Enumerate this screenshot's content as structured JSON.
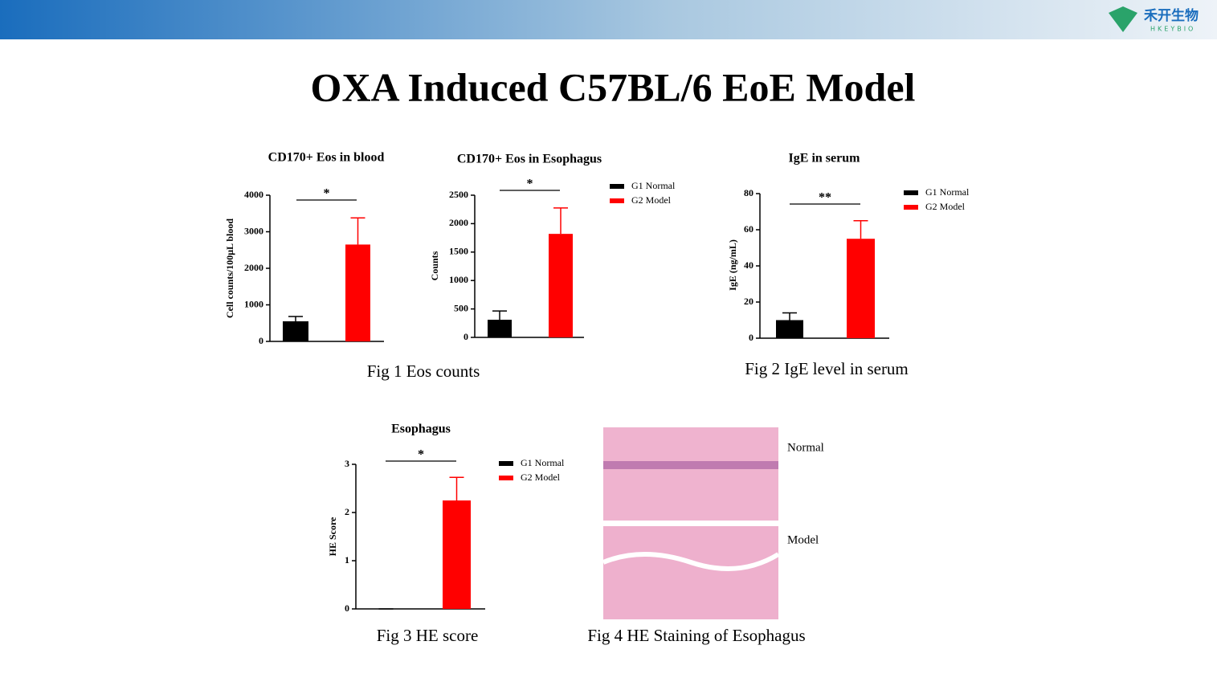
{
  "title": "OXA Induced C57BL/6 EoE Model",
  "logo": {
    "name": "禾开生物",
    "sub": "HKEYBIO"
  },
  "captions": [
    "Fig 1 Eos counts",
    "Fig 2 IgE level in serum",
    "Fig 3 HE score",
    "Fig 4 HE Staining of Esophagus"
  ],
  "images": {
    "labels": [
      "Normal",
      "Model"
    ]
  },
  "chart_data": [
    {
      "type": "bar",
      "title": "CD170+ Eos in blood",
      "y_label": "Cell counts/100μL blood",
      "series": [
        {
          "color": "#000000",
          "values": [
            550
          ],
          "errors": [
            130
          ]
        },
        {
          "color": "#ff0000",
          "values": [
            2650
          ],
          "errors": [
            730
          ]
        }
      ],
      "ylim": [
        0,
        4000
      ],
      "yticks": [
        0,
        1000,
        2000,
        3000,
        4000
      ],
      "significance": "*"
    },
    {
      "type": "bar",
      "title": "CD170+ Eos in Esophagus",
      "y_label": "Counts",
      "series": [
        {
          "name": "G1 Normal",
          "color": "#000000",
          "values": [
            310
          ],
          "errors": [
            155
          ]
        },
        {
          "name": "G2 Model",
          "color": "#ff0000",
          "values": [
            1820
          ],
          "errors": [
            455
          ]
        }
      ],
      "ylim": [
        0,
        2500
      ],
      "yticks": [
        0,
        500,
        1000,
        1500,
        2000,
        2500
      ],
      "significance": "*"
    },
    {
      "type": "bar",
      "title": "IgE in serum",
      "y_label": "IgE (ng/mL)",
      "series": [
        {
          "name": "G1 Normal",
          "color": "#000000",
          "values": [
            10
          ],
          "errors": [
            4
          ]
        },
        {
          "name": "G2 Model",
          "color": "#ff0000",
          "values": [
            55
          ],
          "errors": [
            10
          ]
        }
      ],
      "ylim": [
        0,
        80
      ],
      "yticks": [
        0,
        20,
        40,
        60,
        80
      ],
      "significance": "**"
    },
    {
      "type": "bar",
      "title": "Esophagus",
      "y_label": "HE Score",
      "series": [
        {
          "name": "G1 Normal",
          "color": "#000000",
          "values": [
            0
          ],
          "errors": [
            0
          ]
        },
        {
          "name": "G2 Model",
          "color": "#ff0000",
          "values": [
            2.25
          ],
          "errors": [
            0.48
          ]
        }
      ],
      "ylim": [
        0,
        3
      ],
      "yticks": [
        0,
        1,
        2,
        3
      ],
      "significance": "*"
    }
  ]
}
